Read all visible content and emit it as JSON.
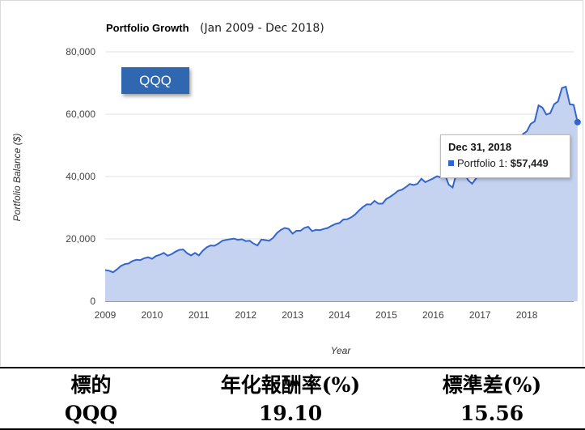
{
  "chart_data": {
    "type": "area",
    "title": "Portfolio Growth",
    "subtitle": "(Jan 2009 - Dec 2018)",
    "xlabel": "Year",
    "ylabel": "Portfolio Balance ($)",
    "xlim": [
      2009,
      2019
    ],
    "ylim": [
      0,
      80000
    ],
    "x_ticks": [
      "2009",
      "2010",
      "2011",
      "2012",
      "2013",
      "2014",
      "2015",
      "2016",
      "2017",
      "2018"
    ],
    "y_ticks": [
      0,
      20000,
      40000,
      60000,
      80000
    ],
    "y_tick_labels": [
      "0",
      "20,000",
      "40,000",
      "60,000",
      "80,000"
    ],
    "grid": true,
    "series": [
      {
        "name": "Portfolio 1",
        "color": "#3366cc",
        "fill": "#c5d3f1",
        "x_start": "2009-01",
        "frequency": "monthly",
        "values": [
          10000,
          9800,
          9300,
          10200,
          11300,
          11900,
          12100,
          12900,
          13300,
          13200,
          13800,
          14100,
          13600,
          14500,
          14900,
          15500,
          14600,
          15100,
          15900,
          16500,
          16600,
          15400,
          14700,
          15500,
          14700,
          16200,
          17300,
          17900,
          17800,
          18500,
          19400,
          19700,
          19900,
          20100,
          19700,
          19900,
          19300,
          19400,
          18500,
          17900,
          19800,
          19600,
          19400,
          20300,
          21900,
          22900,
          23500,
          23200,
          21700,
          22600,
          22600,
          23500,
          23900,
          22500,
          22900,
          22800,
          23200,
          23500,
          24200,
          24800,
          25100,
          26200,
          26300,
          26900,
          27800,
          29100,
          30200,
          31100,
          31000,
          32200,
          31300,
          31300,
          32800,
          33500,
          34400,
          35400,
          35800,
          36600,
          37600,
          37300,
          37700,
          39300,
          38200,
          38800,
          39400,
          40100,
          39700,
          40700,
          37400,
          36500,
          41200,
          41500,
          41000,
          38800,
          37700,
          39400,
          40600,
          40900,
          43000,
          44500,
          45700,
          46500,
          47400,
          48000,
          49500,
          50900,
          51300,
          53600,
          54500,
          56900,
          57700,
          62800,
          62100,
          59900,
          60300,
          63200,
          64100,
          68400,
          68800,
          63200,
          63000,
          57449
        ]
      }
    ],
    "highlight": {
      "label": "QQQ"
    },
    "tooltip": {
      "date": "Dec 31, 2018",
      "series": "Portfolio 1:",
      "value": "$57,449"
    }
  },
  "stats": {
    "headers": [
      "標的",
      "年化報酬率(%)",
      "標準差(%)"
    ],
    "row": [
      "QQQ",
      "19.10",
      "15.56"
    ]
  }
}
